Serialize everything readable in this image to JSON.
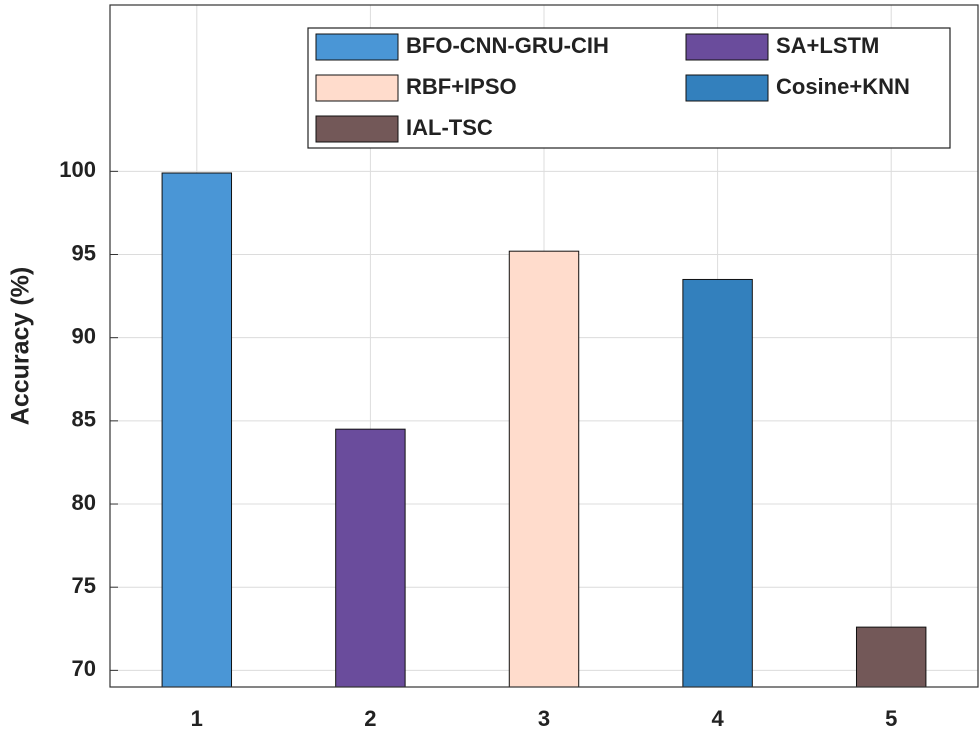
{
  "chart_data": {
    "type": "bar",
    "ylabel": "Accuracy (%)",
    "xlim": [
      0.5,
      5.5
    ],
    "xticks": [
      1,
      2,
      3,
      4,
      5
    ],
    "ylim": [
      69,
      110
    ],
    "yticks": [
      70,
      75,
      80,
      85,
      90,
      95,
      100
    ],
    "grid": true,
    "legend": "north-east",
    "series": [
      {
        "name": "BFO-CNN-GRU-CIH",
        "color": "#4a96d6",
        "x": [
          1
        ],
        "values": [
          99.9
        ]
      },
      {
        "name": "SA+LSTM",
        "color": "#6a4c9c",
        "x": [
          2
        ],
        "values": [
          84.5
        ]
      },
      {
        "name": "RBF+IPSO",
        "color": "#ffdccc",
        "x": [
          3
        ],
        "values": [
          95.2
        ]
      },
      {
        "name": "Cosine+KNN",
        "color": "#3380bd",
        "x": [
          4
        ],
        "values": [
          93.5
        ]
      },
      {
        "name": "IAL-TSC",
        "color": "#735858",
        "x": [
          5
        ],
        "values": [
          72.6
        ]
      }
    ]
  }
}
